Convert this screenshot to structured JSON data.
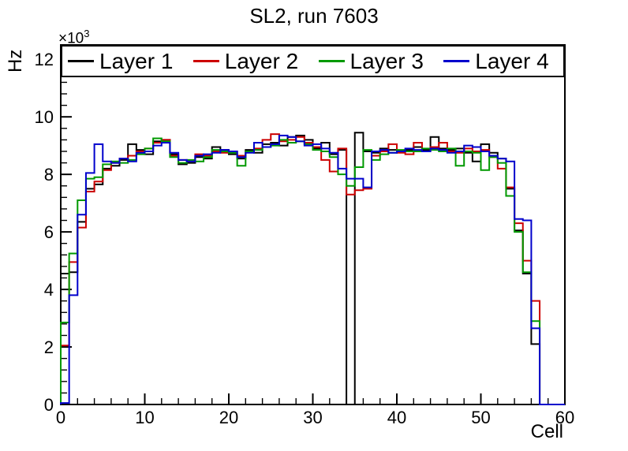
{
  "title": "SL2, run 7603",
  "axes": {
    "x": {
      "label": "Cell",
      "min": 0,
      "max": 60,
      "major_ticks": [
        0,
        10,
        20,
        30,
        40,
        50,
        60
      ],
      "tick_labels": [
        "0",
        "10",
        "20",
        "30",
        "40",
        "50",
        "60"
      ],
      "minor_step": 2
    },
    "y": {
      "label": "Hz",
      "exponent_base": "×10",
      "exponent_power": "3",
      "min": 0,
      "max": 12500,
      "major_ticks": [
        0,
        2000,
        4000,
        6000,
        8000,
        10000,
        12000
      ],
      "tick_labels": [
        "0",
        "2",
        "4",
        "6",
        "8",
        "10",
        "12"
      ],
      "minor_step": 400
    }
  },
  "chart_data": {
    "type": "step-histogram",
    "title": "SL2, run 7603",
    "xlabel": "Cell",
    "ylabel": "Hz",
    "x_range": [
      0,
      60
    ],
    "y_range": [
      0,
      12500
    ],
    "bin_width": 1,
    "grid": false,
    "legend_position": "top-strip",
    "series": [
      {
        "name": "Layer 1",
        "color": "#000000",
        "values": [
          4550,
          4600,
          6350,
          7500,
          7650,
          8200,
          8300,
          8500,
          9050,
          8850,
          8700,
          9150,
          9200,
          8700,
          8350,
          8400,
          8600,
          8550,
          8950,
          8850,
          8700,
          8550,
          8850,
          8750,
          9050,
          9100,
          9000,
          9300,
          9350,
          9200,
          8900,
          9100,
          8700,
          8850,
          0,
          9450,
          8800,
          8750,
          8900,
          8850,
          8800,
          8850,
          8950,
          8850,
          9300,
          8900,
          8850,
          8900,
          8750,
          8450,
          9050,
          8750,
          8550,
          7500,
          6050,
          4550,
          2100,
          0,
          0,
          0
        ]
      },
      {
        "name": "Layer 2",
        "color": "#cc0000",
        "values": [
          2050,
          4950,
          6150,
          7400,
          7750,
          8150,
          8400,
          8550,
          8650,
          8800,
          8900,
          9100,
          9200,
          8650,
          8500,
          8450,
          8700,
          8650,
          8800,
          8750,
          8800,
          8650,
          8800,
          8900,
          9200,
          9400,
          9150,
          9200,
          9300,
          9100,
          8950,
          8500,
          8100,
          8900,
          7300,
          7450,
          7500,
          8650,
          8800,
          9050,
          8750,
          8700,
          9100,
          8800,
          8950,
          9100,
          8800,
          8750,
          8900,
          8800,
          8850,
          8600,
          8200,
          7550,
          6300,
          5000,
          3600,
          0,
          0,
          0
        ]
      },
      {
        "name": "Layer 3",
        "color": "#009900",
        "values": [
          2850,
          5250,
          7100,
          7850,
          7900,
          8350,
          8450,
          8400,
          8500,
          8700,
          8900,
          9250,
          9150,
          8600,
          8400,
          8500,
          8450,
          8600,
          8850,
          8800,
          8750,
          8300,
          8800,
          8850,
          8950,
          9000,
          9200,
          9100,
          9150,
          9050,
          8850,
          8800,
          8600,
          8000,
          7600,
          8250,
          8850,
          8500,
          8700,
          8750,
          8850,
          8800,
          8800,
          8900,
          8850,
          8800,
          8900,
          8300,
          8800,
          8750,
          8150,
          8600,
          8400,
          7250,
          6000,
          4600,
          2900,
          0,
          0,
          0
        ]
      },
      {
        "name": "Layer 4",
        "color": "#0000cc",
        "values": [
          50,
          3800,
          6600,
          8050,
          9050,
          8450,
          8400,
          8550,
          8450,
          8750,
          8800,
          9000,
          9100,
          8750,
          8500,
          8450,
          8650,
          8700,
          8750,
          8850,
          8800,
          8600,
          8750,
          9100,
          8950,
          9050,
          9350,
          9300,
          9150,
          9000,
          9050,
          8900,
          8750,
          8200,
          7850,
          7850,
          7550,
          8800,
          8850,
          8750,
          8800,
          8900,
          8850,
          8800,
          8900,
          8850,
          8750,
          8800,
          9000,
          8950,
          8800,
          8650,
          8550,
          8450,
          6450,
          6400,
          2650,
          0,
          0,
          0
        ]
      }
    ]
  }
}
